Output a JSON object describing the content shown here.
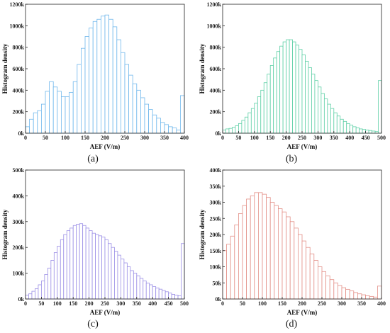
{
  "chart_data": [
    {
      "type": "bar",
      "panel": "(a)",
      "xlabel": "AEF (V/m)",
      "ylabel": "Histogram density",
      "bar_color": "#6fb7ec",
      "xlim": [
        0,
        400
      ],
      "ylim": [
        0,
        1200000
      ],
      "xticks": [
        0,
        50,
        100,
        150,
        200,
        250,
        300,
        350,
        400
      ],
      "xtick_labels": [
        "0",
        "50",
        "100",
        "150",
        "200",
        "250",
        "300",
        "350",
        "400"
      ],
      "yticks": [
        0,
        200000,
        400000,
        600000,
        800000,
        1000000,
        1200000
      ],
      "ytick_labels": [
        "0k",
        "200k",
        "400k",
        "600k",
        "800k",
        "1000k",
        "1200k"
      ],
      "bin_width": 10,
      "values": [
        60000,
        130000,
        190000,
        210000,
        270000,
        390000,
        480000,
        430000,
        390000,
        340000,
        340000,
        380000,
        480000,
        640000,
        790000,
        900000,
        980000,
        1040000,
        1060000,
        1090000,
        1100000,
        1060000,
        990000,
        870000,
        750000,
        640000,
        540000,
        460000,
        400000,
        330000,
        270000,
        220000,
        170000,
        140000,
        100000,
        80000,
        60000,
        50000,
        30000,
        350000
      ]
    },
    {
      "type": "bar",
      "panel": "(b)",
      "xlabel": "AEF (V/m)",
      "ylabel": "Histogram density",
      "bar_color": "#5ccfa5",
      "xlim": [
        0,
        500
      ],
      "ylim": [
        0,
        1200000
      ],
      "xticks": [
        0,
        50,
        100,
        150,
        200,
        250,
        300,
        350,
        400,
        450,
        500
      ],
      "xtick_labels": [
        "0",
        "50",
        "100",
        "150",
        "200",
        "250",
        "300",
        "350",
        "400",
        "450",
        "500"
      ],
      "yticks": [
        0,
        200000,
        400000,
        600000,
        800000,
        1000000,
        1200000
      ],
      "ytick_labels": [
        "0k",
        "200k",
        "400k",
        "600k",
        "800k",
        "1000k",
        "1200k"
      ],
      "bin_width": 10,
      "values": [
        30000,
        40000,
        45000,
        55000,
        70000,
        90000,
        120000,
        150000,
        190000,
        230000,
        280000,
        340000,
        400000,
        470000,
        550000,
        630000,
        700000,
        760000,
        810000,
        850000,
        870000,
        870000,
        850000,
        820000,
        780000,
        730000,
        670000,
        610000,
        550000,
        490000,
        430000,
        370000,
        320000,
        270000,
        230000,
        190000,
        160000,
        130000,
        110000,
        90000,
        75000,
        60000,
        50000,
        40000,
        35000,
        30000,
        25000,
        20000,
        15000,
        490000
      ]
    },
    {
      "type": "bar",
      "panel": "(c)",
      "xlabel": "AEF (V/m)",
      "ylabel": "Histogram density",
      "bar_color": "#9b8fe6",
      "xlim": [
        0,
        500
      ],
      "ylim": [
        0,
        500000
      ],
      "xticks": [
        0,
        50,
        100,
        150,
        200,
        250,
        300,
        350,
        400,
        450,
        500
      ],
      "xtick_labels": [
        "0",
        "50",
        "100",
        "150",
        "200",
        "250",
        "300",
        "350",
        "400",
        "450",
        "500"
      ],
      "yticks": [
        0,
        100000,
        200000,
        300000,
        400000,
        500000
      ],
      "ytick_labels": [
        "0k",
        "100k",
        "200k",
        "300k",
        "400k",
        "500k"
      ],
      "bin_width": 10,
      "values": [
        15000,
        20000,
        30000,
        40000,
        55000,
        70000,
        95000,
        120000,
        150000,
        180000,
        205000,
        230000,
        250000,
        265000,
        275000,
        285000,
        290000,
        292000,
        285000,
        275000,
        265000,
        255000,
        250000,
        245000,
        240000,
        230000,
        215000,
        200000,
        185000,
        170000,
        155000,
        140000,
        125000,
        110000,
        100000,
        90000,
        80000,
        70000,
        62000,
        55000,
        48000,
        43000,
        38000,
        33000,
        28000,
        23000,
        18000,
        15000,
        12000,
        215000
      ]
    },
    {
      "type": "bar",
      "panel": "(d)",
      "xlabel": "AEF (V/m)",
      "ylabel": "Histogram density",
      "bar_color": "#e38f87",
      "xlim": [
        0,
        400
      ],
      "ylim": [
        0,
        400000
      ],
      "xticks": [
        0,
        50,
        100,
        150,
        200,
        250,
        300,
        350,
        400
      ],
      "xtick_labels": [
        "0",
        "50",
        "100",
        "150",
        "200",
        "250",
        "300",
        "350",
        "400"
      ],
      "yticks": [
        0,
        50000,
        100000,
        150000,
        200000,
        250000,
        300000,
        350000,
        400000
      ],
      "ytick_labels": [
        "0k",
        "50k",
        "100k",
        "150k",
        "200k",
        "250k",
        "300k",
        "350k",
        "400k"
      ],
      "bin_width": 10,
      "values": [
        150000,
        170000,
        195000,
        230000,
        265000,
        290000,
        310000,
        320000,
        330000,
        330000,
        325000,
        315000,
        300000,
        290000,
        280000,
        270000,
        255000,
        240000,
        220000,
        200000,
        180000,
        160000,
        140000,
        120000,
        100000,
        85000,
        72000,
        60000,
        50000,
        42000,
        35000,
        30000,
        25000,
        20000,
        16000,
        13000,
        10000,
        8000,
        6000,
        40000
      ]
    }
  ]
}
